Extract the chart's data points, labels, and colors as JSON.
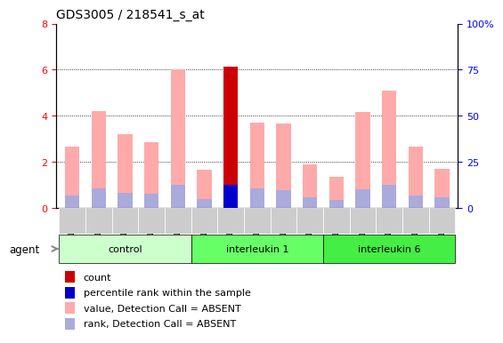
{
  "title": "GDS3005 / 218541_s_at",
  "samples": [
    "GSM211500",
    "GSM211501",
    "GSM211502",
    "GSM211503",
    "GSM211504",
    "GSM211505",
    "GSM211506",
    "GSM211507",
    "GSM211508",
    "GSM211509",
    "GSM211510",
    "GSM211511",
    "GSM211512",
    "GSM211513",
    "GSM211514"
  ],
  "groups": [
    {
      "label": "control",
      "color": "#ccffcc",
      "start": 0,
      "end": 5
    },
    {
      "label": "interleukin 1",
      "color": "#66ff66",
      "start": 5,
      "end": 10
    },
    {
      "label": "interleukin 6",
      "color": "#44ee44",
      "start": 10,
      "end": 15
    }
  ],
  "pink_values": [
    2.65,
    4.2,
    3.2,
    2.85,
    6.0,
    1.65,
    6.15,
    3.7,
    3.65,
    1.9,
    1.35,
    4.15,
    5.1,
    2.65,
    1.7
  ],
  "lavender_values": [
    0.55,
    0.85,
    0.65,
    0.6,
    1.0,
    0.4,
    0.0,
    0.85,
    0.75,
    0.45,
    0.35,
    0.8,
    1.0,
    0.55,
    0.45
  ],
  "red_values": [
    0.0,
    0.0,
    0.0,
    0.0,
    0.0,
    0.0,
    6.15,
    0.0,
    0.0,
    0.0,
    0.0,
    0.0,
    0.0,
    0.0,
    0.0
  ],
  "blue_values": [
    0.0,
    0.0,
    0.0,
    0.0,
    0.0,
    0.0,
    1.0,
    0.0,
    0.0,
    0.0,
    0.0,
    0.0,
    0.0,
    0.0,
    0.0
  ],
  "ylim_left": [
    0,
    8
  ],
  "ylim_right": [
    0,
    100
  ],
  "yticks_left": [
    0,
    2,
    4,
    6,
    8
  ],
  "yticks_right": [
    0,
    25,
    50,
    75,
    100
  ],
  "color_pink": "#ffaaaa",
  "color_lavender": "#aaaadd",
  "color_red": "#cc0000",
  "color_blue": "#0000cc",
  "bar_width": 0.55,
  "legend_items": [
    {
      "color": "#cc0000",
      "label": "count"
    },
    {
      "color": "#0000cc",
      "label": "percentile rank within the sample"
    },
    {
      "color": "#ffaaaa",
      "label": "value, Detection Call = ABSENT"
    },
    {
      "color": "#aaaadd",
      "label": "rank, Detection Call = ABSENT"
    }
  ]
}
